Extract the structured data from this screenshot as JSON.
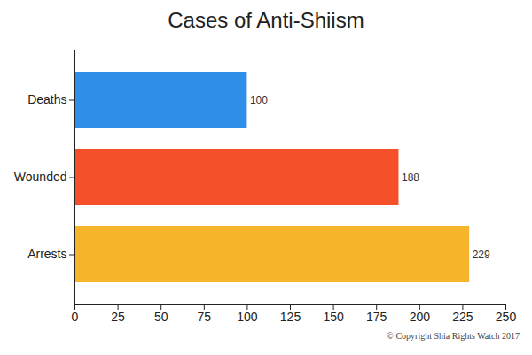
{
  "chart_data": {
    "type": "bar",
    "orientation": "horizontal",
    "title": "Cases of Anti-Shiism",
    "categories": [
      "Deaths",
      "Wounded",
      "Arrests"
    ],
    "values": [
      100,
      188,
      229
    ],
    "colors": [
      "#2f8fe8",
      "#f5502a",
      "#f7b52c"
    ],
    "xlim": [
      0,
      250
    ],
    "xticks": [
      0,
      25,
      50,
      75,
      100,
      125,
      150,
      175,
      200,
      225,
      250
    ],
    "grid": false,
    "data_labels": true,
    "annotations": [
      "© Copyright Shia Rights Watch 2017"
    ]
  }
}
